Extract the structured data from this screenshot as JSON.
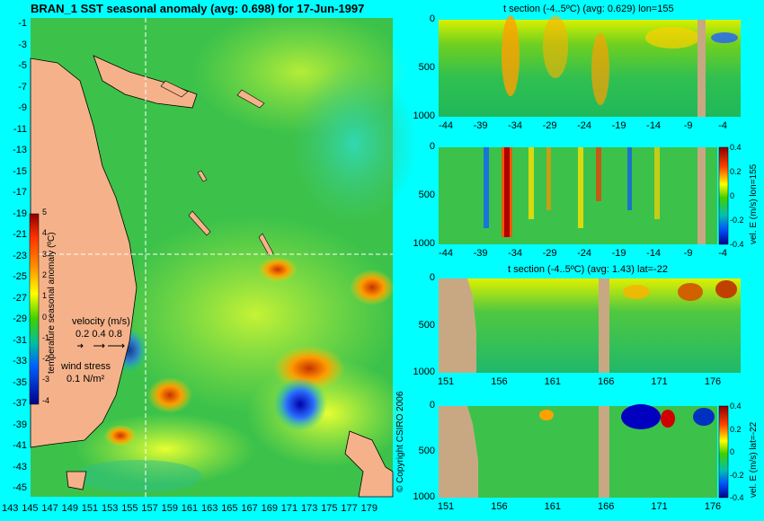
{
  "chart_data": [
    {
      "id": "map",
      "type": "heatmap",
      "title": "BRAN_1 SST seasonal anomaly (avg: 0.698) for 17-Jun-1997",
      "xlabel": "",
      "ylabel": "",
      "x_ticks": [
        "143",
        "145",
        "147",
        "149",
        "151",
        "153",
        "155",
        "157",
        "159",
        "161",
        "163",
        "165",
        "167",
        "169",
        "171",
        "173",
        "175",
        "177",
        "179"
      ],
      "y_ticks": [
        "-1",
        "-3",
        "-5",
        "-7",
        "-9",
        "-11",
        "-13",
        "-15",
        "-17",
        "-19",
        "-21",
        "-23",
        "-25",
        "-27",
        "-29",
        "-31",
        "-33",
        "-35",
        "-37",
        "-39",
        "-41",
        "-43",
        "-45"
      ],
      "xlim": [
        143,
        180
      ],
      "ylim": [
        -45,
        0
      ],
      "colorbar": {
        "label": "temperature seasonal anomaly (ºC)",
        "ticks": [
          "5",
          "4",
          "3",
          "2",
          "1",
          "0",
          "-1",
          "-2",
          "-3",
          "-4"
        ],
        "range": [
          -4,
          5
        ]
      },
      "legend_velocity": {
        "title": "velocity (m/s)",
        "values": "0.2 0.4 0.8"
      },
      "legend_wind": {
        "title": "wind stress",
        "value": "0.1 N/m²"
      },
      "crosshair": {
        "lon": 155,
        "lat": -22
      }
    },
    {
      "id": "t_section_lon",
      "type": "heatmap",
      "title": "t section (-4..5ºC) (avg: 0.629) lon=155",
      "x_ticks": [
        "-44",
        "-39",
        "-34",
        "-29",
        "-24",
        "-19",
        "-14",
        "-9",
        "-4"
      ],
      "y_ticks": [
        "0",
        "500",
        "1000"
      ]
    },
    {
      "id": "vel_lon",
      "type": "heatmap",
      "title": "",
      "x_ticks": [
        "-44",
        "-39",
        "-34",
        "-29",
        "-24",
        "-19",
        "-14",
        "-9",
        "-4"
      ],
      "y_ticks": [
        "0",
        "500",
        "1000"
      ],
      "colorbar": {
        "label": "vel. E (m/s) lon=155",
        "ticks": [
          "0.4",
          "0.2",
          "0",
          "-0.2",
          "-0.4"
        ]
      }
    },
    {
      "id": "t_section_lat",
      "type": "heatmap",
      "title": "t section (-4..5ºC) (avg: 1.43) lat=-22",
      "x_ticks": [
        "151",
        "156",
        "161",
        "166",
        "171",
        "176"
      ],
      "y_ticks": [
        "0",
        "500",
        "1000"
      ]
    },
    {
      "id": "vel_lat",
      "type": "heatmap",
      "title": "",
      "x_ticks": [
        "151",
        "156",
        "161",
        "166",
        "171",
        "176"
      ],
      "y_ticks": [
        "0",
        "500",
        "1000"
      ],
      "colorbar": {
        "label": "vel. E (m/s) lat=-22",
        "ticks": [
          "0.4",
          "0.2",
          "0",
          "-0.2",
          "-0.4"
        ]
      }
    }
  ],
  "copyright": "© Copyright CSIRO 2006"
}
